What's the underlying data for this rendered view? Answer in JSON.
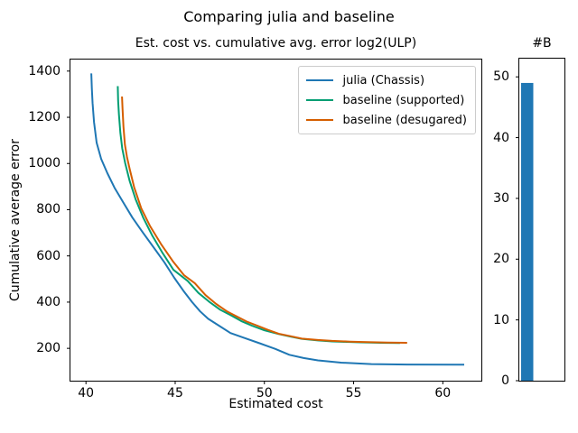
{
  "figure": {
    "suptitle": "Comparing julia and baseline"
  },
  "chart_data": [
    {
      "type": "line",
      "title": "Est. cost vs. cumulative avg. error log2(ULP)",
      "xlabel": "Estimated cost",
      "ylabel": "Cumulative average error",
      "xlim": [
        39.13,
        62.16
      ],
      "ylim": [
        60,
        1450
      ],
      "xticks": [
        40,
        45,
        50,
        55,
        60
      ],
      "yticks": [
        200,
        400,
        600,
        800,
        1000,
        1200,
        1400
      ],
      "grid": false,
      "legend_position": "upper right",
      "series": [
        {
          "name": "julia (Chassis)",
          "color": "#1f77b4",
          "points": [
            [
              40.3,
              1390
            ],
            [
              40.33,
              1325
            ],
            [
              40.37,
              1262
            ],
            [
              40.45,
              1180
            ],
            [
              40.6,
              1090
            ],
            [
              40.85,
              1020
            ],
            [
              41.2,
              958
            ],
            [
              41.6,
              895
            ],
            [
              42.1,
              830
            ],
            [
              42.6,
              766
            ],
            [
              43.2,
              700
            ],
            [
              43.8,
              636
            ],
            [
              44.4,
              572
            ],
            [
              44.95,
              505
            ],
            [
              45.45,
              450
            ],
            [
              45.95,
              400
            ],
            [
              46.4,
              360
            ],
            [
              46.85,
              328
            ],
            [
              47.5,
              296
            ],
            [
              48.1,
              266
            ],
            [
              48.8,
              247
            ],
            [
              49.8,
              220
            ],
            [
              50.6,
              198
            ],
            [
              51.4,
              172
            ],
            [
              52.2,
              158
            ],
            [
              53.0,
              148
            ],
            [
              54.3,
              138
            ],
            [
              56.0,
              132
            ],
            [
              58.0,
              130
            ],
            [
              61.2,
              129
            ]
          ]
        },
        {
          "name": "baseline (supported)",
          "color": "#029e73",
          "points": [
            [
              41.78,
              1335
            ],
            [
              41.8,
              1272
            ],
            [
              41.85,
              1212
            ],
            [
              41.93,
              1132
            ],
            [
              42.03,
              1066
            ],
            [
              42.2,
              1000
            ],
            [
              42.45,
              924
            ],
            [
              42.78,
              846
            ],
            [
              43.2,
              767
            ],
            [
              43.7,
              690
            ],
            [
              44.3,
              612
            ],
            [
              44.9,
              540
            ],
            [
              45.7,
              492
            ],
            [
              46.3,
              440
            ],
            [
              46.9,
              402
            ],
            [
              47.5,
              368
            ],
            [
              48.1,
              344
            ],
            [
              48.7,
              318
            ],
            [
              49.3,
              298
            ],
            [
              50.0,
              278
            ],
            [
              50.8,
              262
            ],
            [
              51.5,
              250
            ],
            [
              52.1,
              241
            ],
            [
              53.0,
              234
            ],
            [
              53.8,
              230
            ],
            [
              54.6,
              228
            ],
            [
              55.4,
              226
            ],
            [
              56.5,
              224
            ],
            [
              57.6,
              223
            ]
          ]
        },
        {
          "name": "baseline (desugared)",
          "color": "#d55e00",
          "points": [
            [
              42.02,
              1290
            ],
            [
              42.05,
              1236
            ],
            [
              42.1,
              1160
            ],
            [
              42.18,
              1082
            ],
            [
              42.3,
              1028
            ],
            [
              42.45,
              976
            ],
            [
              42.7,
              898
            ],
            [
              43.1,
              806
            ],
            [
              43.6,
              728
            ],
            [
              44.2,
              652
            ],
            [
              44.9,
              574
            ],
            [
              45.5,
              516
            ],
            [
              46.1,
              482
            ],
            [
              46.7,
              430
            ],
            [
              47.3,
              392
            ],
            [
              47.9,
              360
            ],
            [
              48.45,
              338
            ],
            [
              49.0,
              316
            ],
            [
              49.6,
              298
            ],
            [
              50.2,
              280
            ],
            [
              50.8,
              263
            ],
            [
              51.5,
              252
            ],
            [
              52.1,
              242
            ],
            [
              53.0,
              236
            ],
            [
              53.8,
              232
            ],
            [
              54.8,
              229
            ],
            [
              55.8,
              227
            ],
            [
              56.9,
              225
            ],
            [
              58.0,
              224
            ]
          ]
        }
      ]
    },
    {
      "type": "bar",
      "title": "#B",
      "categories": [
        ""
      ],
      "values": [
        49
      ],
      "color": "#1f77b4",
      "ylim": [
        0,
        53
      ],
      "yticks": [
        0,
        10,
        20,
        30,
        40,
        50
      ],
      "grid": false
    }
  ]
}
